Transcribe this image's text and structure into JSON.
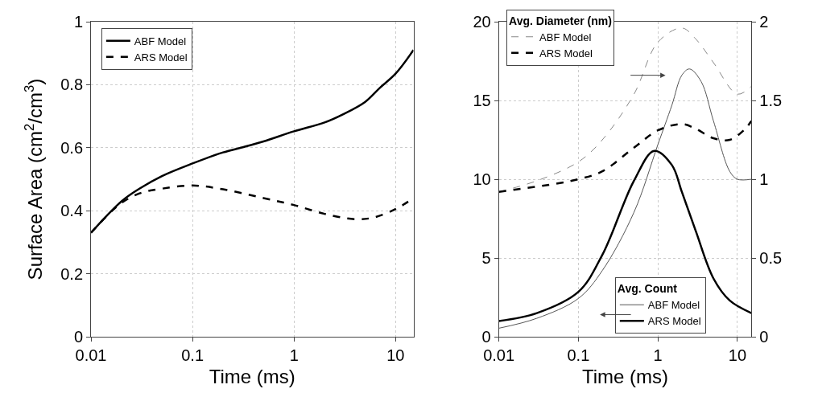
{
  "chart_data": [
    {
      "type": "line",
      "xlabel": "Time (ms)",
      "ylabel": "Surface Area (cm$^{2}$/cm$^{3}$)",
      "log": "x",
      "grid": true,
      "legend": "top left",
      "xlim": [
        0.01,
        15
      ],
      "xticks": [
        0.01,
        0.1,
        1,
        10
      ],
      "ylim": [
        0,
        1
      ],
      "yticks": [
        0,
        0.2,
        0.4,
        0.6,
        0.8,
        1
      ],
      "series": [
        {
          "name": "ABF Model",
          "color": "#000000",
          "line_style": "solid",
          "x": [
            0.01,
            0.02,
            0.03,
            0.05,
            0.1,
            0.2,
            0.3,
            0.5,
            1,
            2,
            3,
            5,
            7,
            10,
            15
          ],
          "values": [
            0.33,
            0.43,
            0.47,
            0.51,
            0.55,
            0.585,
            0.6,
            0.62,
            0.652,
            0.68,
            0.705,
            0.745,
            0.79,
            0.835,
            0.91
          ]
        },
        {
          "name": "ARS Model",
          "color": "#000000",
          "line_style": "dashed",
          "x": [
            0.01,
            0.015,
            0.02,
            0.03,
            0.05,
            0.1,
            0.2,
            0.5,
            1,
            2,
            4,
            6,
            10,
            15
          ],
          "values": [
            0.33,
            0.39,
            0.425,
            0.455,
            0.47,
            0.48,
            0.468,
            0.44,
            0.418,
            0.39,
            0.373,
            0.378,
            0.405,
            0.44
          ]
        }
      ]
    },
    {
      "type": "line",
      "xlabel": "Time (ms)",
      "log": "x",
      "grid": true,
      "legend": "left",
      "annotations": [
        "Avg. Diameter (nm)",
        "Avg. Count"
      ],
      "xlim": [
        0.01,
        15
      ],
      "xticks": [
        0.01,
        0.1,
        1,
        10
      ],
      "ylim": [
        0,
        20
      ],
      "yticks": [
        0,
        5,
        10,
        15,
        20
      ],
      "y2lim": [
        0,
        2
      ],
      "y2ticks": [
        0,
        0.5,
        1,
        1.5,
        2
      ],
      "series": [
        {
          "name": "ABF Model",
          "axis": "y2",
          "color": "#888888",
          "line_style": "dashed",
          "x": [
            0.01,
            0.03,
            0.1,
            0.2,
            0.5,
            1,
            2,
            3,
            5,
            10,
            15
          ],
          "values": [
            0.92,
            0.99,
            1.11,
            1.25,
            1.54,
            1.87,
            1.96,
            1.89,
            1.74,
            1.54,
            1.59
          ]
        },
        {
          "name": "ARS Model",
          "axis": "y2",
          "color": "#000000",
          "line_style": "dashed",
          "x": [
            0.01,
            0.05,
            0.1,
            0.2,
            0.5,
            1,
            2,
            3,
            5,
            8,
            12,
            15
          ],
          "values": [
            0.92,
            0.97,
            1.0,
            1.05,
            1.2,
            1.31,
            1.35,
            1.32,
            1.26,
            1.25,
            1.31,
            1.37
          ]
        },
        {
          "name": "ABF Model",
          "axis": "y",
          "color": "#555555",
          "line_style": "solid",
          "x": [
            0.01,
            0.03,
            0.1,
            0.2,
            0.5,
            1,
            1.5,
            2,
            2.5,
            3.5,
            5,
            8,
            10,
            15
          ],
          "values": [
            0.54,
            1.17,
            2.43,
            4.2,
            7.9,
            12.2,
            14.7,
            16.6,
            17.0,
            16.2,
            13.7,
            10.5,
            10.0,
            10.0
          ]
        },
        {
          "name": "ARS Model",
          "axis": "y",
          "color": "#000000",
          "line_style": "solid",
          "x": [
            0.01,
            0.03,
            0.1,
            0.2,
            0.5,
            0.9,
            1.5,
            2,
            3,
            5,
            8,
            15
          ],
          "values": [
            1.0,
            1.5,
            2.85,
            5.2,
            9.9,
            11.8,
            10.9,
            9.2,
            6.7,
            3.7,
            2.3,
            1.5
          ]
        }
      ]
    }
  ]
}
